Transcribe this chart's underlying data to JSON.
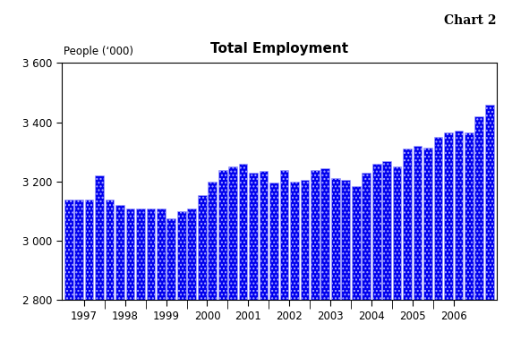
{
  "title": "Total Employment",
  "chart_label": "Chart 2",
  "people_label": "People (‘000)",
  "ylim": [
    2800,
    3600
  ],
  "yticks": [
    2800,
    3000,
    3200,
    3400,
    3600
  ],
  "ytick_labels": [
    "2 800",
    "3 000",
    "3 200",
    "3 400",
    "3 600"
  ],
  "bar_color": "#0000ee",
  "bar_edgecolor": "#aaaaff",
  "background_color": "#ffffff",
  "values": [
    3140,
    3140,
    3140,
    3220,
    3140,
    3120,
    3110,
    3110,
    3110,
    3110,
    3075,
    3100,
    3110,
    3155,
    3200,
    3240,
    3250,
    3260,
    3230,
    3235,
    3195,
    3240,
    3200,
    3205,
    3240,
    3245,
    3210,
    3205,
    3185,
    3230,
    3260,
    3270,
    3250,
    3310,
    3320,
    3315,
    3350,
    3365,
    3370,
    3365,
    3420,
    3460
  ],
  "year_centers": [
    1.5,
    5.5,
    9.5,
    13.5,
    17.5,
    21.5,
    25.5,
    29.5,
    33.5,
    37.5
  ],
  "year_labels": [
    "1997",
    "1998",
    "1999",
    "2000",
    "2001",
    "2002",
    "2003",
    "2004",
    "2005",
    "2006"
  ],
  "year_separators": [
    3.5,
    7.5,
    11.5,
    15.5,
    19.5,
    23.5,
    27.5,
    31.5,
    35.5
  ],
  "n_bars": 42
}
